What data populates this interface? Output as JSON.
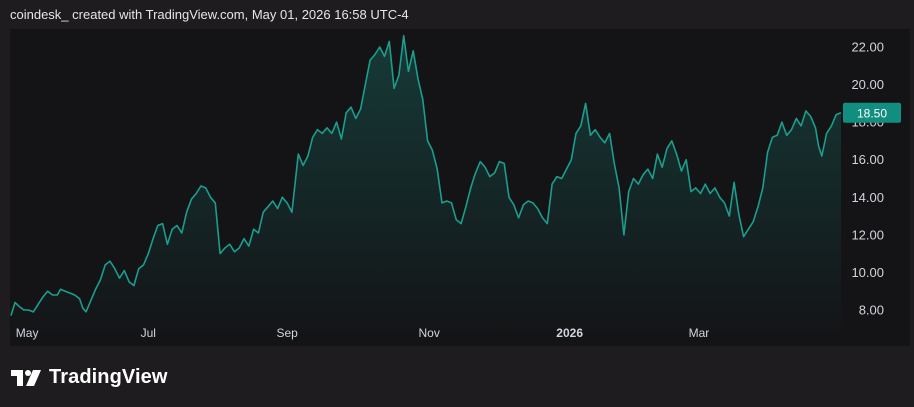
{
  "header": {
    "text": "coindesk_ created with TradingView.com, May 01, 2026 16:58 UTC-4"
  },
  "brand": {
    "name": "TradingView",
    "icon": "tradingview-logo-icon"
  },
  "colors": {
    "background": "#1e1c1f",
    "panel": "#141316",
    "line": "#1a9e8e",
    "label_bg": "#118e80"
  },
  "chart_data": {
    "type": "area",
    "x_unit": "weeks from start of visible range",
    "x_ticks": [
      {
        "label": "May",
        "x": 0.3
      },
      {
        "label": "Jul",
        "x": 8.6
      },
      {
        "label": "Sep",
        "x": 17.3
      },
      {
        "label": "Nov",
        "x": 26.2
      },
      {
        "label": "2026",
        "x": 35.0,
        "bold": true
      },
      {
        "label": "Mar",
        "x": 43.1
      }
    ],
    "y_ticks": [
      8,
      10,
      12,
      14,
      16,
      18,
      20,
      22
    ],
    "y_tick_labels": [
      "8.00",
      "10.00",
      "12.00",
      "14.00",
      "16.00",
      "18.00",
      "20.00",
      "22.00"
    ],
    "ylim": [
      7.2,
      23.3
    ],
    "xlim": [
      0,
      53.1
    ],
    "last_value": 18.5,
    "last_value_label": "18.50",
    "grid": false,
    "points": [
      [
        0,
        7.7
      ],
      [
        0.25,
        8.4
      ],
      [
        0.5,
        8.2
      ],
      [
        0.8,
        8.0
      ],
      [
        1.1,
        8.0
      ],
      [
        1.4,
        7.9
      ],
      [
        1.7,
        8.3
      ],
      [
        2.0,
        8.7
      ],
      [
        2.3,
        9.0
      ],
      [
        2.6,
        8.8
      ],
      [
        2.9,
        8.8
      ],
      [
        3.1,
        9.1
      ],
      [
        3.4,
        9.0
      ],
      [
        3.7,
        8.9
      ],
      [
        4.0,
        8.8
      ],
      [
        4.3,
        8.6
      ],
      [
        4.5,
        8.1
      ],
      [
        4.7,
        7.9
      ],
      [
        5.0,
        8.5
      ],
      [
        5.3,
        9.1
      ],
      [
        5.6,
        9.6
      ],
      [
        5.9,
        10.4
      ],
      [
        6.2,
        10.6
      ],
      [
        6.5,
        10.2
      ],
      [
        6.8,
        9.7
      ],
      [
        7.1,
        10.1
      ],
      [
        7.4,
        9.5
      ],
      [
        7.7,
        9.3
      ],
      [
        8.0,
        10.2
      ],
      [
        8.3,
        10.4
      ],
      [
        8.6,
        11.0
      ],
      [
        8.9,
        11.8
      ],
      [
        9.2,
        12.5
      ],
      [
        9.5,
        12.6
      ],
      [
        9.8,
        11.5
      ],
      [
        10.1,
        12.3
      ],
      [
        10.4,
        12.5
      ],
      [
        10.7,
        12.1
      ],
      [
        11.0,
        13.2
      ],
      [
        11.3,
        13.9
      ],
      [
        11.6,
        14.2
      ],
      [
        11.9,
        14.6
      ],
      [
        12.2,
        14.5
      ],
      [
        12.5,
        14.0
      ],
      [
        12.8,
        13.7
      ],
      [
        13.1,
        11.0
      ],
      [
        13.4,
        11.3
      ],
      [
        13.7,
        11.5
      ],
      [
        14.0,
        11.1
      ],
      [
        14.3,
        11.3
      ],
      [
        14.6,
        11.8
      ],
      [
        14.9,
        11.4
      ],
      [
        15.2,
        12.3
      ],
      [
        15.5,
        12.1
      ],
      [
        15.8,
        13.2
      ],
      [
        16.1,
        13.5
      ],
      [
        16.4,
        13.8
      ],
      [
        16.7,
        13.4
      ],
      [
        17.0,
        14.0
      ],
      [
        17.3,
        13.7
      ],
      [
        17.6,
        13.2
      ],
      [
        18.0,
        16.3
      ],
      [
        18.3,
        15.7
      ],
      [
        18.6,
        16.2
      ],
      [
        18.9,
        17.2
      ],
      [
        19.2,
        17.6
      ],
      [
        19.5,
        17.4
      ],
      [
        19.8,
        17.7
      ],
      [
        20.1,
        17.4
      ],
      [
        20.4,
        18.0
      ],
      [
        20.7,
        17.1
      ],
      [
        21.0,
        18.5
      ],
      [
        21.3,
        18.8
      ],
      [
        21.6,
        18.2
      ],
      [
        21.9,
        18.7
      ],
      [
        22.2,
        20.0
      ],
      [
        22.5,
        21.3
      ],
      [
        22.8,
        21.6
      ],
      [
        23.1,
        22.0
      ],
      [
        23.4,
        21.5
      ],
      [
        23.7,
        22.3
      ],
      [
        24.0,
        19.8
      ],
      [
        24.3,
        20.5
      ],
      [
        24.6,
        22.6
      ],
      [
        24.9,
        20.7
      ],
      [
        25.2,
        21.8
      ],
      [
        25.5,
        20.3
      ],
      [
        25.8,
        19.2
      ],
      [
        26.1,
        17.0
      ],
      [
        26.4,
        16.5
      ],
      [
        26.7,
        15.5
      ],
      [
        27.0,
        13.7
      ],
      [
        27.3,
        13.8
      ],
      [
        27.6,
        13.7
      ],
      [
        27.9,
        12.8
      ],
      [
        28.2,
        12.6
      ],
      [
        28.5,
        13.5
      ],
      [
        28.8,
        14.5
      ],
      [
        29.1,
        15.3
      ],
      [
        29.4,
        15.9
      ],
      [
        29.7,
        15.6
      ],
      [
        30.0,
        15.1
      ],
      [
        30.3,
        15.3
      ],
      [
        30.6,
        15.9
      ],
      [
        30.9,
        15.8
      ],
      [
        31.2,
        14.0
      ],
      [
        31.5,
        13.6
      ],
      [
        31.8,
        12.9
      ],
      [
        32.1,
        13.6
      ],
      [
        32.4,
        13.8
      ],
      [
        32.7,
        13.7
      ],
      [
        33.0,
        13.4
      ],
      [
        33.3,
        12.9
      ],
      [
        33.6,
        12.6
      ],
      [
        33.9,
        14.7
      ],
      [
        34.2,
        15.1
      ],
      [
        34.5,
        15.0
      ],
      [
        34.8,
        15.5
      ],
      [
        35.1,
        16.0
      ],
      [
        35.4,
        17.4
      ],
      [
        35.7,
        17.8
      ],
      [
        36.0,
        19.0
      ],
      [
        36.3,
        17.3
      ],
      [
        36.6,
        17.6
      ],
      [
        36.9,
        17.2
      ],
      [
        37.2,
        16.9
      ],
      [
        37.5,
        17.4
      ],
      [
        37.8,
        15.8
      ],
      [
        38.1,
        14.5
      ],
      [
        38.4,
        12.0
      ],
      [
        38.7,
        14.3
      ],
      [
        39.0,
        15.0
      ],
      [
        39.3,
        14.7
      ],
      [
        39.6,
        15.2
      ],
      [
        39.9,
        15.5
      ],
      [
        40.2,
        15.0
      ],
      [
        40.5,
        16.3
      ],
      [
        40.8,
        15.6
      ],
      [
        41.1,
        16.6
      ],
      [
        41.4,
        17.0
      ],
      [
        41.7,
        16.3
      ],
      [
        42.0,
        15.4
      ],
      [
        42.3,
        16.0
      ],
      [
        42.6,
        14.3
      ],
      [
        42.9,
        14.5
      ],
      [
        43.2,
        14.2
      ],
      [
        43.5,
        14.7
      ],
      [
        43.8,
        14.2
      ],
      [
        44.1,
        14.5
      ],
      [
        44.4,
        14.0
      ],
      [
        44.7,
        13.7
      ],
      [
        45.0,
        13.0
      ],
      [
        45.3,
        14.8
      ],
      [
        45.6,
        13.1
      ],
      [
        45.9,
        11.9
      ],
      [
        46.2,
        12.3
      ],
      [
        46.5,
        12.7
      ],
      [
        46.8,
        13.5
      ],
      [
        47.1,
        14.5
      ],
      [
        47.4,
        16.4
      ],
      [
        47.7,
        17.2
      ],
      [
        48.0,
        17.3
      ],
      [
        48.3,
        18.0
      ],
      [
        48.6,
        17.3
      ],
      [
        48.9,
        17.6
      ],
      [
        49.2,
        18.2
      ],
      [
        49.5,
        17.8
      ],
      [
        49.8,
        18.6
      ],
      [
        50.1,
        18.3
      ],
      [
        50.4,
        17.7
      ],
      [
        50.6,
        16.7
      ],
      [
        50.8,
        16.2
      ],
      [
        51.1,
        17.4
      ],
      [
        51.4,
        17.8
      ],
      [
        51.7,
        18.4
      ],
      [
        52.0,
        18.5
      ]
    ]
  }
}
